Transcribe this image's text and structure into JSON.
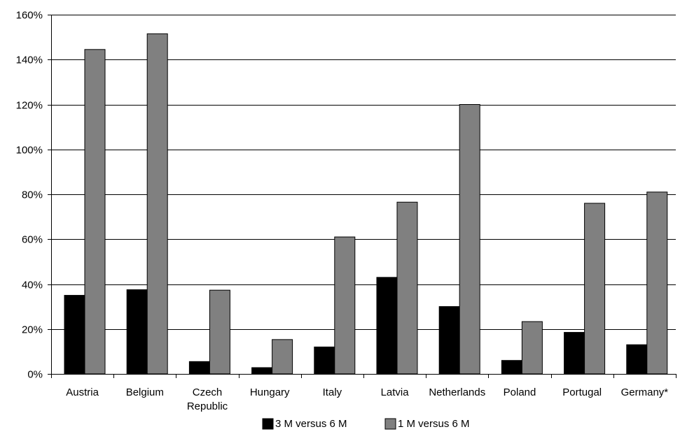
{
  "chart_data": {
    "type": "bar",
    "categories": [
      "Austria",
      "Belgium",
      "Czech Republic",
      "Hungary",
      "Italy",
      "Latvia",
      "Netherlands",
      "Poland",
      "Portugal",
      "Germany*"
    ],
    "category_lines": [
      [
        "Austria"
      ],
      [
        "Belgium"
      ],
      [
        "Czech",
        "Republic"
      ],
      [
        "Hungary"
      ],
      [
        "Italy"
      ],
      [
        "Latvia"
      ],
      [
        "Netherlands"
      ],
      [
        "Poland"
      ],
      [
        "Portugal"
      ],
      [
        "Germany*"
      ]
    ],
    "series": [
      {
        "name": "3 M versus 6 M",
        "color": "#000000",
        "values": [
          35,
          37.5,
          5.5,
          2.8,
          12,
          43,
          30,
          6,
          18.5,
          13
        ]
      },
      {
        "name": "1 M versus 6 M",
        "color": "#808080",
        "values": [
          144.5,
          151.5,
          37.3,
          15.3,
          61,
          76.5,
          120,
          23.3,
          76,
          81
        ]
      }
    ],
    "ylim": [
      0,
      160
    ],
    "yticks": [
      0,
      20,
      40,
      60,
      80,
      100,
      120,
      140,
      160
    ],
    "ytick_labels": [
      "0%",
      "20%",
      "40%",
      "60%",
      "80%",
      "100%",
      "120%",
      "140%",
      "160%"
    ],
    "grid": true,
    "legend_position": "bottom",
    "title": "",
    "xlabel": "",
    "ylabel": ""
  }
}
